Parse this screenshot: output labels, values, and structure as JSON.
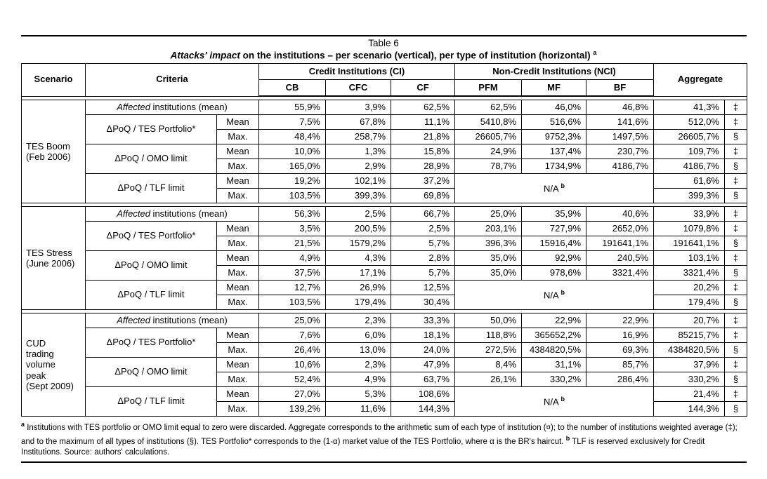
{
  "page": {
    "title": "Table 6",
    "subtitle_italic": "Attacks' impact",
    "subtitle_rest": " on the institutions – per scenario (vertical), per type of institution (horizontal) ",
    "subtitle_marker": "a"
  },
  "table": {
    "col_headers": {
      "scenario": "Scenario",
      "criteria": "Criteria",
      "group_ci": "Credit Institutions (CI)",
      "group_nci": "Non-Credit Institutions (NCI)",
      "ci_cols": [
        "CB",
        "CFC",
        "CF"
      ],
      "nci_cols": [
        "PFM",
        "MF",
        "BF"
      ],
      "aggregate": "Aggregate"
    },
    "affected_label_italic": "Affected",
    "affected_label_rest": " institutions (mean)",
    "row_labels": {
      "mean": "Mean",
      "max": "Max."
    },
    "na_label": "N/A",
    "na_superscript": "b",
    "scenarios": [
      {
        "name_lines": [
          "TES Boom",
          "(Feb 2006)"
        ],
        "affected": {
          "values": [
            "55,9%",
            "3,9%",
            "62,5%",
            "62,5%",
            "46,0%",
            "46,8%"
          ],
          "aggregate": "41,3%",
          "symbol": "‡"
        },
        "criteria": [
          {
            "label": "ΔPoQ / TES Portfolio*",
            "mean": {
              "values": [
                "7,5%",
                "67,8%",
                "11,1%",
                "5410,8%",
                "516,6%",
                "141,6%"
              ],
              "aggregate": "512,0%",
              "symbol": "‡"
            },
            "max": {
              "values": [
                "48,4%",
                "258,7%",
                "21,8%",
                "26605,7%",
                "9752,3%",
                "1497,5%"
              ],
              "aggregate": "26605,7%",
              "symbol": "§"
            }
          },
          {
            "label": "ΔPoQ / OMO limit",
            "mean": {
              "values": [
                "10,0%",
                "1,3%",
                "15,8%",
                "24,9%",
                "137,4%",
                "230,7%"
              ],
              "aggregate": "109,7%",
              "symbol": "‡"
            },
            "max": {
              "values": [
                "165,0%",
                "2,9%",
                "28,9%",
                "78,7%",
                "1734,9%",
                "4186,7%"
              ],
              "aggregate": "4186,7%",
              "symbol": "§"
            }
          },
          {
            "label": "ΔPoQ / TLF limit",
            "na": true,
            "mean": {
              "values": [
                "19,2%",
                "102,1%",
                "37,2%"
              ],
              "aggregate": "61,6%",
              "symbol": "‡"
            },
            "max": {
              "values": [
                "103,5%",
                "399,3%",
                "69,8%"
              ],
              "aggregate": "399,3%",
              "symbol": "§"
            }
          }
        ]
      },
      {
        "name_lines": [
          "TES Stress",
          "(June 2006)"
        ],
        "affected": {
          "values": [
            "56,3%",
            "2,5%",
            "66,7%",
            "25,0%",
            "35,9%",
            "40,6%"
          ],
          "aggregate": "33,9%",
          "symbol": "‡"
        },
        "criteria": [
          {
            "label": "ΔPoQ / TES Portfolio*",
            "mean": {
              "values": [
                "3,5%",
                "200,5%",
                "2,5%",
                "203,1%",
                "727,9%",
                "2652,0%"
              ],
              "aggregate": "1079,8%",
              "symbol": "‡"
            },
            "max": {
              "values": [
                "21,5%",
                "1579,2%",
                "5,7%",
                "396,3%",
                "15916,4%",
                "191641,1%"
              ],
              "aggregate": "191641,1%",
              "symbol": "§"
            }
          },
          {
            "label": "ΔPoQ / OMO limit",
            "mean": {
              "values": [
                "4,9%",
                "4,3%",
                "2,8%",
                "35,0%",
                "92,9%",
                "240,5%"
              ],
              "aggregate": "103,1%",
              "symbol": "‡"
            },
            "max": {
              "values": [
                "37,5%",
                "17,1%",
                "5,7%",
                "35,0%",
                "978,6%",
                "3321,4%"
              ],
              "aggregate": "3321,4%",
              "symbol": "§"
            }
          },
          {
            "label": "ΔPoQ / TLF limit",
            "na": true,
            "mean": {
              "values": [
                "12,7%",
                "26,9%",
                "12,5%"
              ],
              "aggregate": "20,2%",
              "symbol": "‡"
            },
            "max": {
              "values": [
                "103,5%",
                "179,4%",
                "30,4%"
              ],
              "aggregate": "179,4%",
              "symbol": "§"
            }
          }
        ]
      },
      {
        "name_lines": [
          "CUD",
          "trading",
          "volume",
          "peak",
          "(Sept 2009)"
        ],
        "affected": {
          "values": [
            "25,0%",
            "2,3%",
            "33,3%",
            "50,0%",
            "22,9%",
            "22,9%"
          ],
          "aggregate": "20,7%",
          "symbol": "‡"
        },
        "criteria": [
          {
            "label": "ΔPoQ / TES Portfolio*",
            "mean": {
              "values": [
                "7,6%",
                "6,0%",
                "18,1%",
                "118,8%",
                "365652,2%",
                "16,9%"
              ],
              "aggregate": "85215,7%",
              "symbol": "‡"
            },
            "max": {
              "values": [
                "26,4%",
                "13,0%",
                "24,0%",
                "272,5%",
                "4384820,5%",
                "69,3%"
              ],
              "aggregate": "4384820,5%",
              "symbol": "§"
            }
          },
          {
            "label": "ΔPoQ / OMO limit",
            "mean": {
              "values": [
                "10,6%",
                "2,3%",
                "47,9%",
                "8,4%",
                "31,1%",
                "85,7%"
              ],
              "aggregate": "37,9%",
              "symbol": "‡"
            },
            "max": {
              "values": [
                "52,4%",
                "4,9%",
                "63,7%",
                "26,1%",
                "330,2%",
                "286,4%"
              ],
              "aggregate": "330,2%",
              "symbol": "§"
            }
          },
          {
            "label": "ΔPoQ / TLF limit",
            "na": true,
            "mean": {
              "values": [
                "27,0%",
                "5,3%",
                "108,6%"
              ],
              "aggregate": "21,4%",
              "symbol": "‡"
            },
            "max": {
              "values": [
                "139,2%",
                "11,6%",
                "144,3%"
              ],
              "aggregate": "144,3%",
              "symbol": "§"
            }
          }
        ]
      }
    ]
  },
  "footnote": {
    "marker_a": "a",
    "text_a": " Institutions with TES portfolio or OMO limit equal to zero were discarded. Aggregate corresponds to the arithmetic sum of each type of institution (¤); to the number of institutions weighted average (‡); and to the maximum of all types of institutions (§). TES Portfolio* corresponds to the (1-α) market value of the TES Portfolio, where α is the BR's haircut. ",
    "marker_b": "b",
    "text_b": " TLF is reserved exclusively for Credit Institutions. Source: authors' calculations."
  }
}
